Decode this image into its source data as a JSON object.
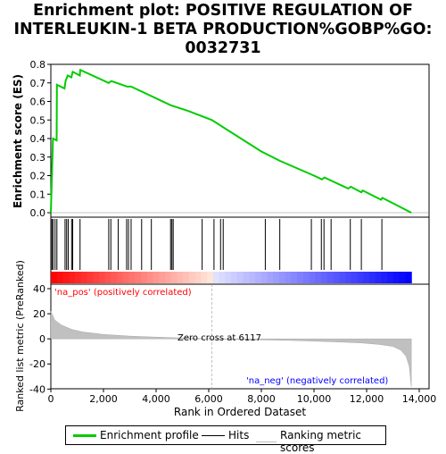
{
  "title": "Enrichment plot: POSITIVE REGULATION OF INTERLEUKIN-1 BETA PRODUCTION%GOBP%GO:0032731",
  "title_lines": [
    "Enrichment plot: POSITIVE REGULATION OF",
    "INTERLEUKIN-1 BETA PRODUCTION%GOBP%GO:",
    "0032731"
  ],
  "chart_data": [
    {
      "type": "line",
      "name": "enrichment-score-panel",
      "ylabel": "Enrichment score (ES)",
      "ylim": [
        0,
        0.8
      ],
      "yticks": [
        "0.0",
        "0.1",
        "0.2",
        "0.3",
        "0.4",
        "0.5",
        "0.6",
        "0.7",
        "0.8"
      ],
      "xlim": [
        0,
        14000
      ],
      "grid": false,
      "series": [
        {
          "name": "Enrichment profile",
          "color": "#00cc00",
          "points": [
            [
              0,
              0
            ],
            [
              40,
              0.2
            ],
            [
              80,
              0.4
            ],
            [
              220,
              0.39
            ],
            [
              230,
              0.69
            ],
            [
              520,
              0.67
            ],
            [
              560,
              0.71
            ],
            [
              640,
              0.74
            ],
            [
              780,
              0.73
            ],
            [
              830,
              0.76
            ],
            [
              1100,
              0.74
            ],
            [
              1120,
              0.77
            ],
            [
              2200,
              0.7
            ],
            [
              2300,
              0.71
            ],
            [
              2900,
              0.68
            ],
            [
              3050,
              0.68
            ],
            [
              4550,
              0.58
            ],
            [
              5200,
              0.55
            ],
            [
              6117,
              0.5
            ],
            [
              8000,
              0.33
            ],
            [
              8700,
              0.28
            ],
            [
              10000,
              0.2
            ],
            [
              10300,
              0.18
            ],
            [
              10400,
              0.19
            ],
            [
              11300,
              0.13
            ],
            [
              11400,
              0.14
            ],
            [
              11800,
              0.11
            ],
            [
              11850,
              0.12
            ],
            [
              12550,
              0.07
            ],
            [
              12600,
              0.08
            ],
            [
              13700,
              0.0
            ]
          ]
        }
      ]
    },
    {
      "type": "scatter",
      "name": "hits-panel",
      "xlim": [
        0,
        14000
      ],
      "series": [
        {
          "name": "Hits",
          "color": "#000000",
          "x": [
            40,
            80,
            160,
            230,
            540,
            600,
            660,
            790,
            830,
            1110,
            2200,
            2280,
            2560,
            2880,
            2950,
            3050,
            3450,
            3820,
            4550,
            4600,
            4650,
            5750,
            6200,
            6450,
            6550,
            8150,
            8700,
            9900,
            10280,
            10380,
            10650,
            11380,
            11800,
            12580
          ]
        }
      ]
    },
    {
      "type": "area",
      "name": "ranked-list-panel",
      "ylabel": "Ranked list metric (PreRanked)",
      "xlabel": "Rank in Ordered Dataset",
      "ylim": [
        -40,
        40
      ],
      "yticks": [
        "-40",
        "-20",
        "0",
        "20",
        "40"
      ],
      "xlim": [
        0,
        14000
      ],
      "xticks": [
        "0",
        "2,000",
        "4,000",
        "6,000",
        "8,000",
        "10,000",
        "12,000",
        "14,000"
      ],
      "zero_cross": 6117,
      "series": [
        {
          "name": "Ranking metric scores",
          "color": "#c0c0c0",
          "points": [
            [
              0,
              22
            ],
            [
              150,
              15
            ],
            [
              400,
              11
            ],
            [
              800,
              7.5
            ],
            [
              1200,
              5.5
            ],
            [
              2000,
              3.5
            ],
            [
              3000,
              2.2
            ],
            [
              4000,
              1.4
            ],
            [
              5000,
              0.7
            ],
            [
              6117,
              0
            ],
            [
              7000,
              -0.4
            ],
            [
              8000,
              -0.8
            ],
            [
              9000,
              -1.2
            ],
            [
              10000,
              -1.8
            ],
            [
              11000,
              -2.5
            ],
            [
              11800,
              -3.2
            ],
            [
              12500,
              -4.5
            ],
            [
              13000,
              -6
            ],
            [
              13300,
              -9
            ],
            [
              13500,
              -14
            ],
            [
              13620,
              -22
            ],
            [
              13700,
              -38
            ]
          ]
        }
      ],
      "annotations": {
        "pos": "'na_pos' (positively correlated)",
        "neg": "'na_neg' (negatively correlated)",
        "zero": "Zero cross at 6117"
      }
    }
  ],
  "legend": {
    "items": [
      {
        "label": "Enrichment profile",
        "color": "#00cc00"
      },
      {
        "label": "Hits",
        "color": "#000000"
      },
      {
        "label": "Ranking metric scores",
        "color": "#c0c0c0"
      }
    ]
  },
  "colors": {
    "pos_band": "#ff0000",
    "neg_band": "#0000ff",
    "pos_label": "#ff0000",
    "neg_label": "#0000ff"
  }
}
